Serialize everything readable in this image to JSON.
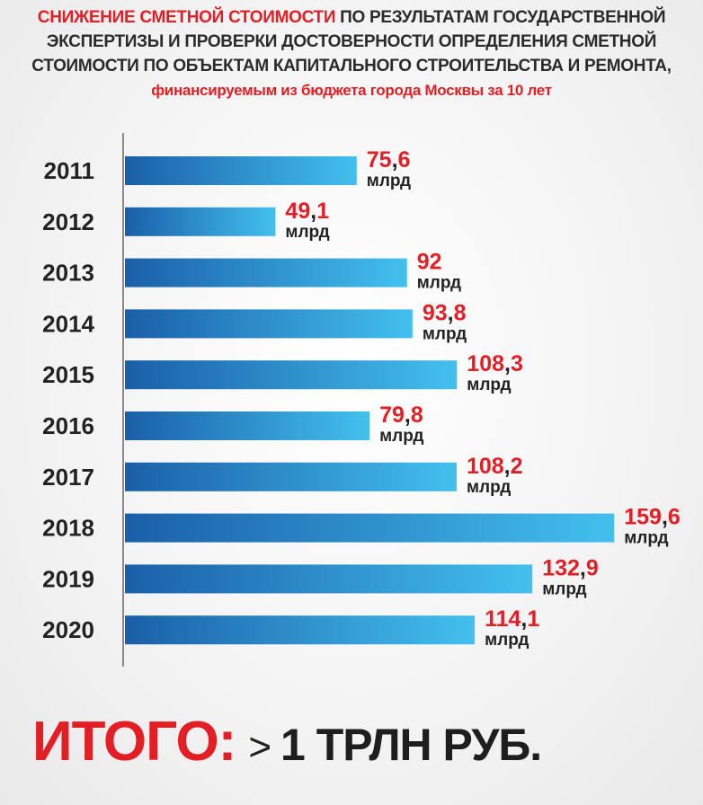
{
  "header": {
    "line1_red": "СНИЖЕНИЕ СМЕТНОЙ СТОИМОСТИ",
    "line1_rest": " ПО РЕЗУЛЬТАТАМ ГОСУДАРСТВЕННОЙ",
    "line2": "ЭКСПЕРТИЗЫ И ПРОВЕРКИ ДОСТОВЕРНОСТИ ОПРЕДЕЛЕНИЯ СМЕТНОЙ",
    "line3": "СТОИМОСТИ ПО ОБЪЕКТАМ КАПИТАЛЬНОГО СТРОИТЕЛЬСТВА И РЕМОНТА,",
    "line4": "финансируемым из бюджета города Москвы за 10 лет"
  },
  "total": {
    "label": "ИТОГО:",
    "symbol": ">",
    "value": "1 ТРЛН РУБ."
  },
  "colors": {
    "accent_red": "#e31e24",
    "bar_dark": "#1a5fa8",
    "bar_light": "#43c0ee",
    "text": "#222222"
  },
  "chart_data": {
    "type": "bar",
    "orientation": "horizontal",
    "categories": [
      "2011",
      "2012",
      "2013",
      "2014",
      "2015",
      "2016",
      "2017",
      "2018",
      "2019",
      "2020"
    ],
    "values": [
      75.6,
      49.1,
      92,
      93.8,
      108.3,
      79.8,
      108.2,
      159.6,
      132.9,
      114.1
    ],
    "value_labels": [
      "75,6",
      "49,1",
      "92",
      "93,8",
      "108,3",
      "79,8",
      "108,2",
      "159,6",
      "132,9",
      "114,1"
    ],
    "unit": "млрд",
    "grid": false,
    "legend": "none"
  }
}
